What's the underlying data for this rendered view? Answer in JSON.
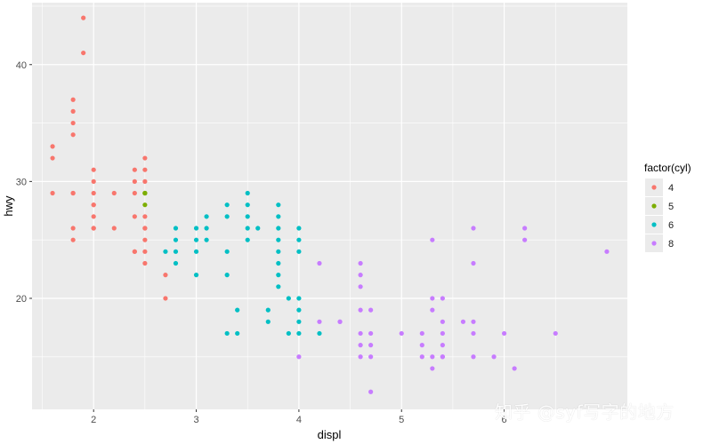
{
  "chart_data": {
    "type": "scatter",
    "xlabel": "displ",
    "ylabel": "hwy",
    "xlim": [
      1.4,
      7.2
    ],
    "ylim": [
      10.5,
      45.3
    ],
    "x_ticks": [
      2,
      3,
      4,
      5,
      6
    ],
    "y_ticks": [
      20,
      30,
      40
    ],
    "grid": true,
    "panel_background": "#EBEBEB",
    "grid_color": "#FFFFFF",
    "legend": {
      "title": "factor(cyl)",
      "position": "right",
      "entries": [
        {
          "label": "4",
          "color": "#F8766D"
        },
        {
          "label": "5",
          "color": "#7CAE00"
        },
        {
          "label": "6",
          "color": "#00BFC4"
        },
        {
          "label": "8",
          "color": "#C77CFF"
        }
      ]
    },
    "series": [
      {
        "name": "4",
        "color": "#F8766D",
        "points": [
          [
            1.8,
            29
          ],
          [
            1.8,
            29
          ],
          [
            2.0,
            31
          ],
          [
            2.0,
            30
          ],
          [
            1.8,
            26
          ],
          [
            1.8,
            25
          ],
          [
            2.0,
            28
          ],
          [
            2.0,
            27
          ],
          [
            2.0,
            29
          ],
          [
            2.0,
            26
          ],
          [
            2.4,
            24
          ],
          [
            2.4,
            24
          ],
          [
            2.2,
            26
          ],
          [
            2.2,
            29
          ],
          [
            2.5,
            26
          ],
          [
            2.5,
            24
          ],
          [
            2.5,
            25
          ],
          [
            2.5,
            23
          ],
          [
            2.7,
            20
          ],
          [
            2.7,
            22
          ],
          [
            1.6,
            33
          ],
          [
            1.6,
            32
          ],
          [
            1.6,
            29
          ],
          [
            1.8,
            37
          ],
          [
            1.8,
            35
          ],
          [
            1.8,
            36
          ],
          [
            1.8,
            34
          ],
          [
            1.9,
            44
          ],
          [
            1.9,
            41
          ],
          [
            2.0,
            26
          ],
          [
            2.4,
            27
          ],
          [
            2.4,
            30
          ],
          [
            2.4,
            31
          ],
          [
            2.5,
            26
          ],
          [
            2.5,
            32
          ],
          [
            2.5,
            31
          ],
          [
            2.5,
            30
          ],
          [
            2.4,
            29
          ],
          [
            2.0,
            28
          ],
          [
            2.5,
            27
          ]
        ]
      },
      {
        "name": "5",
        "color": "#7CAE00",
        "points": [
          [
            2.5,
            29
          ],
          [
            2.5,
            29
          ],
          [
            2.5,
            28
          ],
          [
            2.5,
            29
          ]
        ]
      },
      {
        "name": "6",
        "color": "#00BFC4",
        "points": [
          [
            2.8,
            26
          ],
          [
            2.8,
            25
          ],
          [
            3.1,
            27
          ],
          [
            3.1,
            25
          ],
          [
            2.8,
            24
          ],
          [
            2.8,
            23
          ],
          [
            3.0,
            26
          ],
          [
            3.0,
            25
          ],
          [
            3.0,
            24
          ],
          [
            3.0,
            22
          ],
          [
            3.3,
            17
          ],
          [
            3.3,
            22
          ],
          [
            3.3,
            24
          ],
          [
            3.3,
            28
          ],
          [
            3.3,
            27
          ],
          [
            3.4,
            17
          ],
          [
            3.4,
            19
          ],
          [
            3.5,
            29
          ],
          [
            3.5,
            28
          ],
          [
            3.5,
            27
          ],
          [
            3.5,
            26
          ],
          [
            3.5,
            25
          ],
          [
            3.6,
            26
          ],
          [
            3.7,
            19
          ],
          [
            3.7,
            18
          ],
          [
            3.8,
            28
          ],
          [
            3.8,
            27
          ],
          [
            3.8,
            26
          ],
          [
            3.8,
            25
          ],
          [
            3.8,
            24
          ],
          [
            3.8,
            23
          ],
          [
            3.8,
            22
          ],
          [
            3.8,
            21
          ],
          [
            3.9,
            17
          ],
          [
            3.9,
            20
          ],
          [
            4.0,
            17
          ],
          [
            4.0,
            18
          ],
          [
            4.0,
            19
          ],
          [
            4.0,
            20
          ],
          [
            4.0,
            24
          ],
          [
            4.0,
            26
          ],
          [
            4.0,
            25
          ],
          [
            4.2,
            17
          ],
          [
            2.7,
            24
          ],
          [
            3.1,
            26
          ]
        ]
      },
      {
        "name": "8",
        "color": "#C77CFF",
        "points": [
          [
            4.0,
            15
          ],
          [
            4.2,
            23
          ],
          [
            4.2,
            18
          ],
          [
            4.4,
            18
          ],
          [
            4.6,
            23
          ],
          [
            4.6,
            22
          ],
          [
            4.6,
            21
          ],
          [
            4.6,
            19
          ],
          [
            4.6,
            17
          ],
          [
            4.6,
            16
          ],
          [
            4.6,
            15
          ],
          [
            4.7,
            12
          ],
          [
            4.7,
            19
          ],
          [
            4.7,
            17
          ],
          [
            4.7,
            16
          ],
          [
            4.7,
            15
          ],
          [
            5.0,
            17
          ],
          [
            5.2,
            15
          ],
          [
            5.2,
            16
          ],
          [
            5.2,
            17
          ],
          [
            5.3,
            25
          ],
          [
            5.3,
            20
          ],
          [
            5.3,
            19
          ],
          [
            5.3,
            15
          ],
          [
            5.3,
            14
          ],
          [
            5.4,
            20
          ],
          [
            5.4,
            18
          ],
          [
            5.4,
            17
          ],
          [
            5.4,
            16
          ],
          [
            5.4,
            15
          ],
          [
            5.6,
            18
          ],
          [
            5.7,
            26
          ],
          [
            5.7,
            23
          ],
          [
            5.7,
            18
          ],
          [
            5.7,
            17
          ],
          [
            5.7,
            15
          ],
          [
            5.9,
            15
          ],
          [
            6.0,
            17
          ],
          [
            6.1,
            14
          ],
          [
            6.2,
            26
          ],
          [
            6.2,
            25
          ],
          [
            6.5,
            17
          ],
          [
            7.0,
            24
          ],
          [
            4.4,
            18
          ],
          [
            5.4,
            15
          ]
        ]
      }
    ]
  },
  "watermark_text": "知乎 @syf写字的地方"
}
